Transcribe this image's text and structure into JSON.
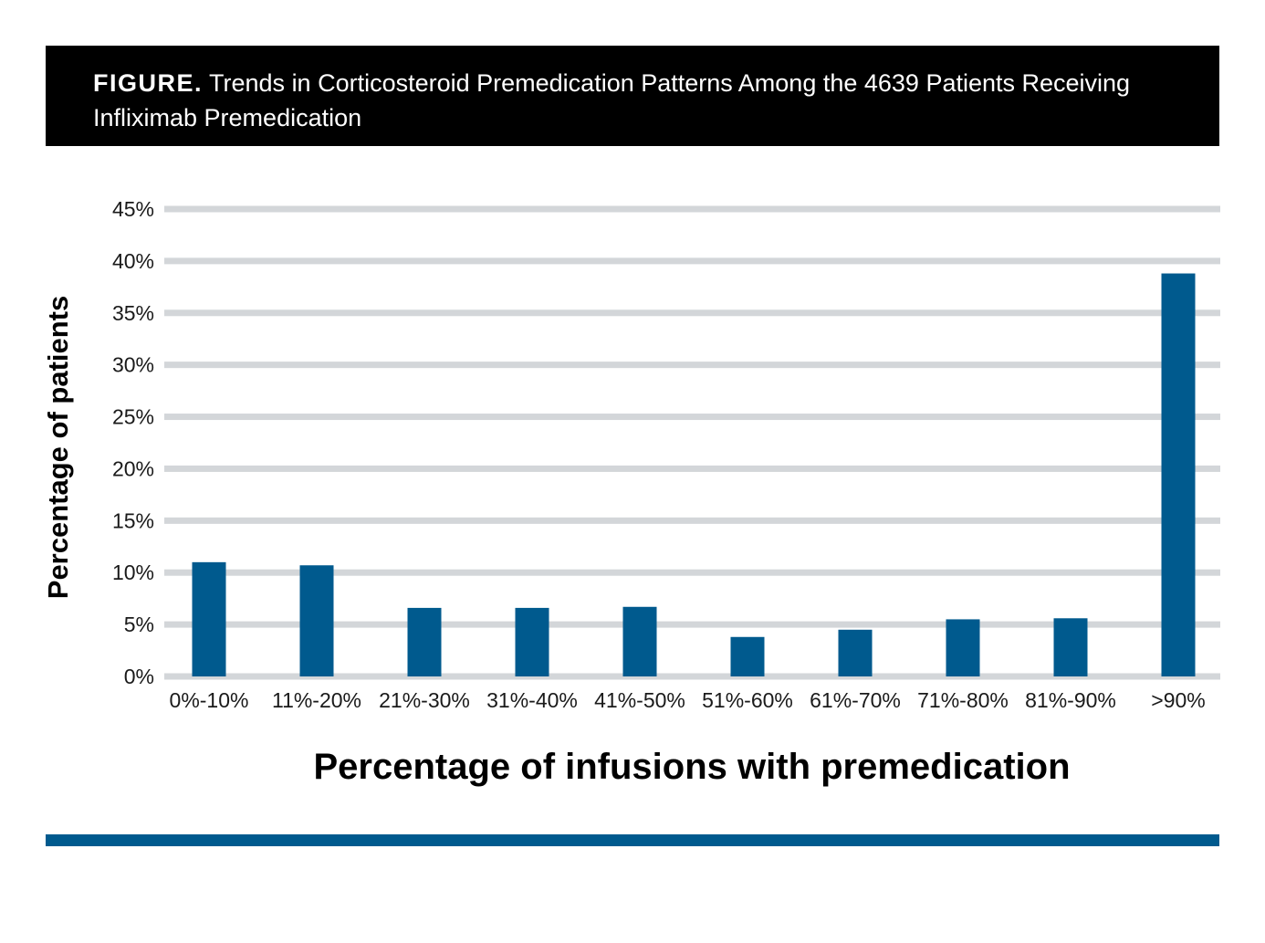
{
  "header": {
    "figure_label": "FIGURE.",
    "title_text": "Trends in Corticosteroid Premedication Patterns Among the 4639 Patients Receiving Infliximab Premedication"
  },
  "colors": {
    "header_bg": "#000000",
    "bar": "#005a8e",
    "grid": "#d3d6d9",
    "footer_rule": "#005a8e"
  },
  "chart_data": {
    "type": "bar",
    "title": "Trends in Corticosteroid Premedication Patterns Among the 4639 Patients Receiving Infliximab Premedication",
    "xlabel": "Percentage of infusions with premedication",
    "ylabel": "Percentage of patients",
    "categories": [
      "0%-10%",
      "11%-20%",
      "21%-30%",
      "31%-40%",
      "41%-50%",
      "51%-60%",
      "61%-70%",
      "71%-80%",
      "81%-90%",
      ">90%"
    ],
    "values": [
      11.0,
      10.7,
      6.6,
      6.6,
      6.7,
      3.8,
      4.5,
      5.5,
      5.6,
      38.8
    ],
    "yticks": [
      "0%",
      "5%",
      "10%",
      "15%",
      "20%",
      "25%",
      "30%",
      "35%",
      "40%",
      "45%"
    ],
    "ylim": [
      0,
      45
    ],
    "grid": true,
    "legend": "none"
  }
}
